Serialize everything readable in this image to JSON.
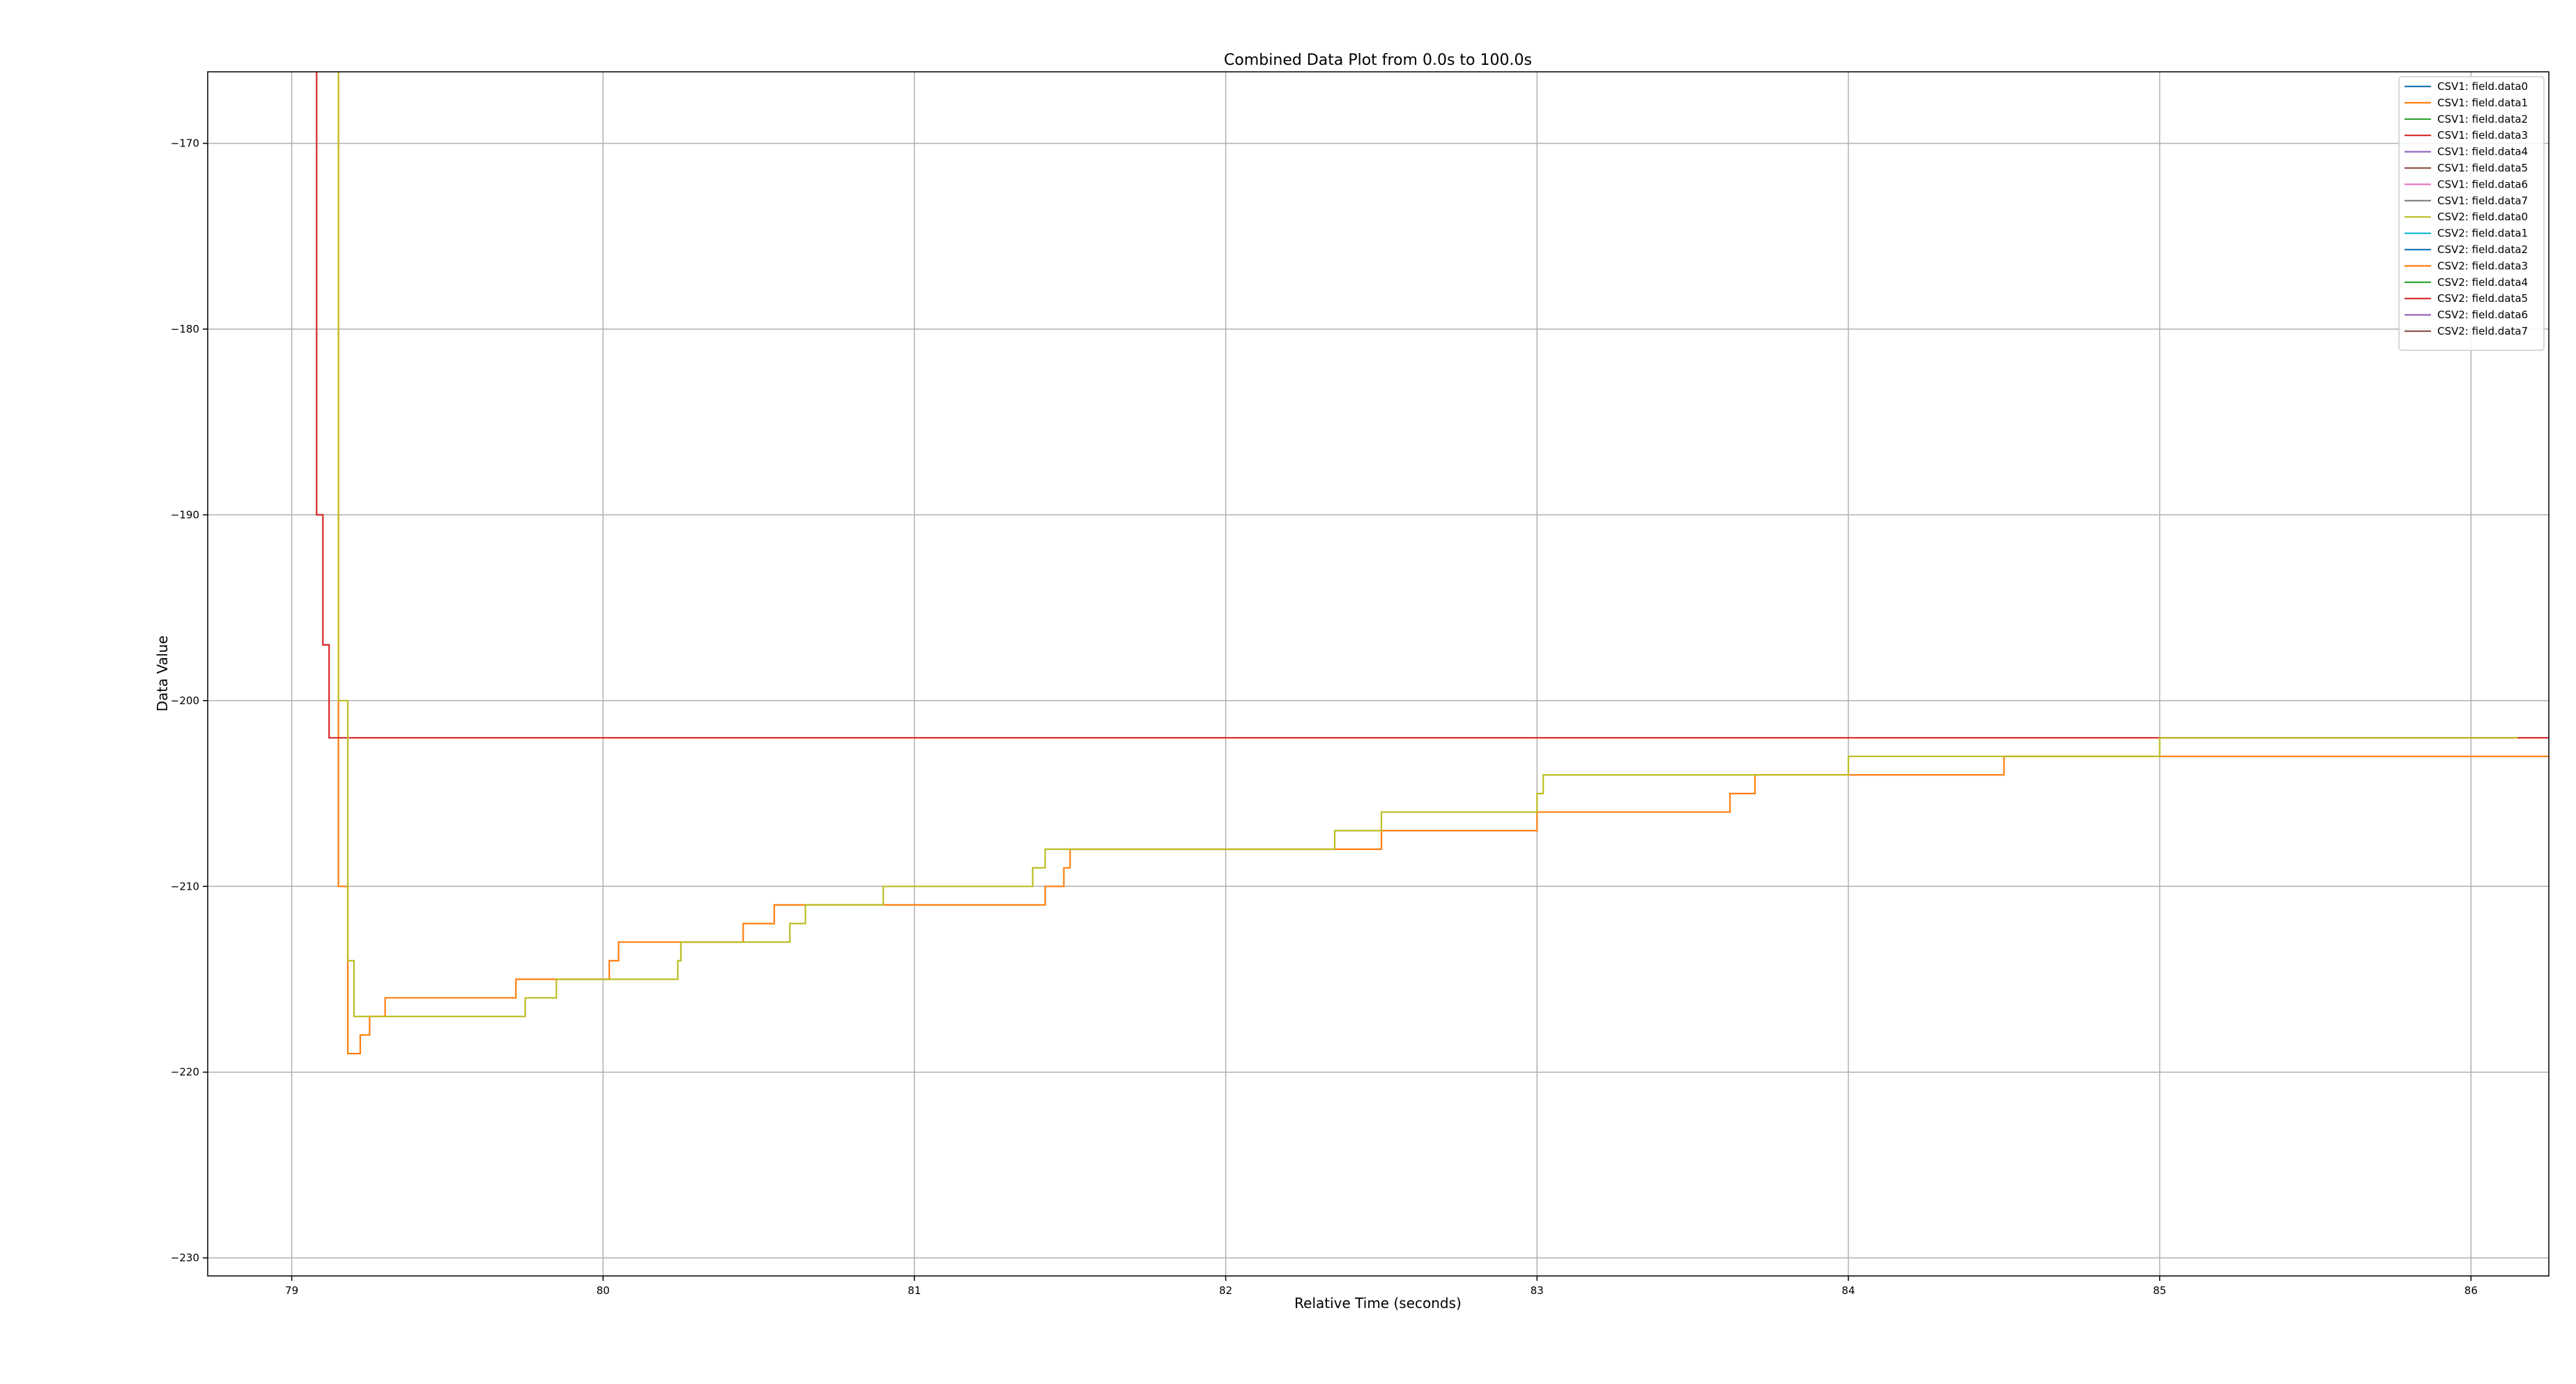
{
  "chart_data": {
    "type": "line",
    "title": "Combined Data Plot from 0.0s to 100.0s",
    "xlabel": "Relative Time (seconds)",
    "ylabel": "Data Value",
    "xlim": [
      78.73,
      86.25
    ],
    "ylim": [
      -230.97,
      -166.15
    ],
    "xticks": [
      79,
      80,
      81,
      82,
      83,
      84,
      85,
      86
    ],
    "yticks": [
      -170,
      -180,
      -190,
      -200,
      -210,
      -220,
      -230
    ],
    "grid": true,
    "legend_position": "top-right",
    "series": [
      {
        "name": "CSV1: field.data0",
        "color": "#1f77b4",
        "x": [],
        "y": []
      },
      {
        "name": "CSV1: field.data1",
        "color": "#ff7f0e",
        "x": [
          79.1,
          79.15,
          79.18,
          79.2,
          79.22,
          79.25,
          79.3,
          79.7,
          79.72,
          80.0,
          80.02,
          80.05,
          80.4,
          80.45,
          80.52,
          80.55,
          81.0,
          81.4,
          81.42,
          81.48,
          81.5,
          82.0,
          82.5,
          82.8,
          83.0,
          83.6,
          83.62,
          83.68,
          83.7,
          84.0,
          84.5,
          85.0,
          86.25
        ],
        "y": [
          -166,
          -210,
          -219,
          -219,
          -218,
          -217,
          -216,
          -216,
          -215,
          -215,
          -214,
          -213,
          -213,
          -212,
          -212,
          -211,
          -211,
          -211,
          -210,
          -209,
          -208,
          -208,
          -207,
          -207,
          -206,
          -206,
          -205,
          -205,
          -204,
          -204,
          -203,
          -203,
          -203
        ]
      },
      {
        "name": "CSV1: field.data2",
        "color": "#2ca02c",
        "x": [],
        "y": []
      },
      {
        "name": "CSV1: field.data3",
        "color": "#d62728",
        "x": [
          79.05,
          79.08,
          79.1,
          79.12,
          86.25
        ],
        "y": [
          -166,
          -190,
          -197,
          -202,
          -202
        ]
      },
      {
        "name": "CSV1: field.data4",
        "color": "#9467bd",
        "x": [],
        "y": []
      },
      {
        "name": "CSV1: field.data5",
        "color": "#8c564b",
        "x": [],
        "y": []
      },
      {
        "name": "CSV1: field.data6",
        "color": "#e377c2",
        "x": [],
        "y": []
      },
      {
        "name": "CSV1: field.data7",
        "color": "#7f7f7f",
        "x": [],
        "y": []
      },
      {
        "name": "CSV2: field.data0",
        "color": "#bcbd22",
        "x": [
          79.1,
          79.15,
          79.18,
          79.2,
          79.5,
          79.7,
          79.75,
          79.8,
          79.85,
          80.0,
          80.22,
          80.24,
          80.25,
          80.4,
          80.6,
          80.65,
          80.9,
          81.2,
          81.38,
          81.4,
          81.42,
          81.5,
          82.0,
          82.3,
          82.35,
          82.5,
          83.0,
          83.02,
          83.05,
          83.7,
          84.0,
          84.5,
          84.9,
          85.0,
          86.15
        ],
        "y": [
          -166,
          -200,
          -214,
          -217,
          -217,
          -217,
          -216,
          -216,
          -215,
          -215,
          -215,
          -214,
          -213,
          -213,
          -212,
          -211,
          -210,
          -210,
          -209,
          -209,
          -208,
          -208,
          -208,
          -208,
          -207,
          -206,
          -205,
          -204,
          -204,
          -204,
          -203,
          -203,
          -203,
          -202,
          -202
        ]
      },
      {
        "name": "CSV2: field.data1",
        "color": "#17becf",
        "x": [],
        "y": []
      },
      {
        "name": "CSV2: field.data2",
        "color": "#1f77b4",
        "x": [],
        "y": []
      },
      {
        "name": "CSV2: field.data3",
        "color": "#ff7f0e",
        "x": [],
        "y": []
      },
      {
        "name": "CSV2: field.data4",
        "color": "#2ca02c",
        "x": [],
        "y": []
      },
      {
        "name": "CSV2: field.data5",
        "color": "#d62728",
        "x": [],
        "y": []
      },
      {
        "name": "CSV2: field.data6",
        "color": "#9467bd",
        "x": [],
        "y": []
      },
      {
        "name": "CSV2: field.data7",
        "color": "#8c564b",
        "x": [],
        "y": []
      }
    ]
  }
}
